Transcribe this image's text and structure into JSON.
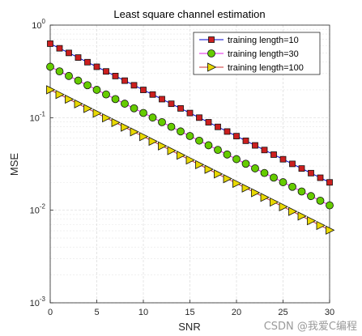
{
  "chart_data": {
    "type": "line",
    "title": "Least square channel estimation",
    "xlabel": "SNR",
    "ylabel": "MSE",
    "xlim": [
      0,
      30
    ],
    "ylim": [
      0.001,
      1
    ],
    "yscale": "log",
    "x_ticks": [
      "0",
      "5",
      "10",
      "15",
      "20",
      "25",
      "30"
    ],
    "y_ticks": [
      {
        "base": "10",
        "exp": "-3"
      },
      {
        "base": "10",
        "exp": "-2"
      },
      {
        "base": "10",
        "exp": "-1"
      },
      {
        "base": "10",
        "exp": "0"
      }
    ],
    "grid": true,
    "minor_grid": true,
    "legend_position": "top-right",
    "x": [
      0,
      1,
      2,
      3,
      4,
      5,
      6,
      7,
      8,
      9,
      10,
      11,
      12,
      13,
      14,
      15,
      16,
      17,
      18,
      19,
      20,
      21,
      22,
      23,
      24,
      25,
      26,
      27,
      28,
      29,
      30
    ],
    "series": [
      {
        "name": "training length=10",
        "marker": "square",
        "line_color": "#0000cc",
        "marker_fill": "#cc1f1f",
        "y0": 0.63,
        "y30": 0.02
      },
      {
        "name": "training length=30",
        "marker": "circle",
        "line_color": "#e020e0",
        "marker_fill": "#66cc00",
        "y0": 0.355,
        "y30": 0.0113
      },
      {
        "name": "training length=100",
        "marker": "triangle",
        "line_color": "#cc3333",
        "marker_fill": "#e8d800",
        "y0": 0.2,
        "y30": 0.0061
      }
    ]
  },
  "watermark": "CSDN @我爱C编程"
}
